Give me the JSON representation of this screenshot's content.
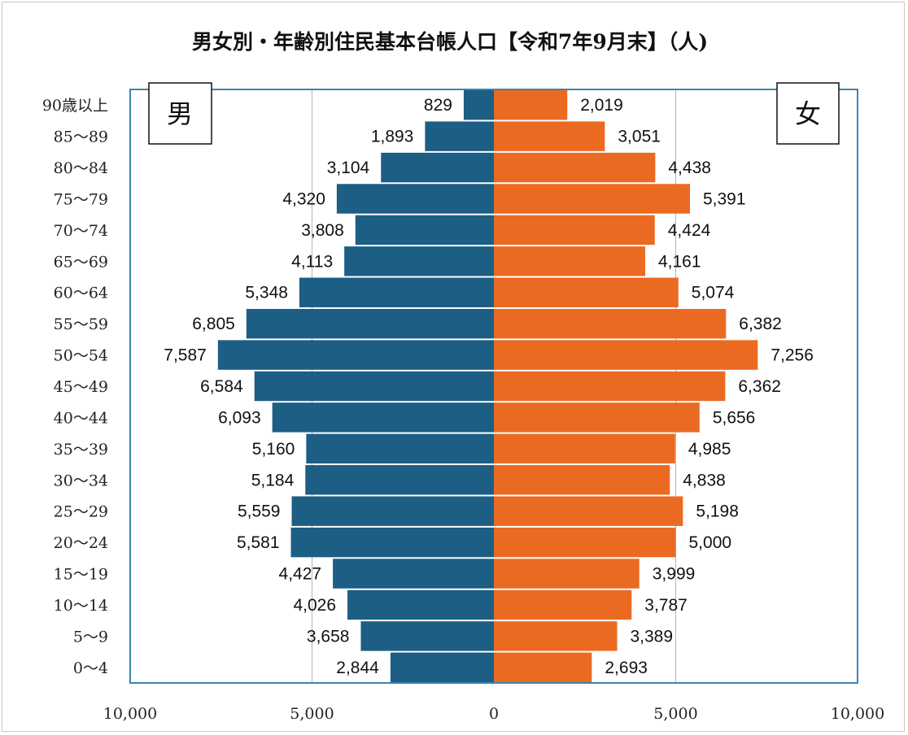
{
  "chart_data": {
    "type": "bar",
    "orientation": "horizontal-pyramid",
    "title": "男女別・年齢別住民基本台帳人口【令和7年9月末】（人)",
    "categories": [
      "90歳以上",
      "85～89",
      "80～84",
      "75～79",
      "70～74",
      "65～69",
      "60～64",
      "55～59",
      "50～54",
      "45～49",
      "40～44",
      "35～39",
      "30～34",
      "25～29",
      "20～24",
      "15～19",
      "10～14",
      "5～9",
      "0～4"
    ],
    "series": [
      {
        "name": "男",
        "color": "#1c5e84",
        "values": [
          829,
          1893,
          3104,
          4320,
          3808,
          4113,
          5348,
          6805,
          7587,
          6584,
          6093,
          5160,
          5184,
          5559,
          5581,
          4427,
          4026,
          3658,
          2844
        ],
        "labels": [
          "829",
          "1,893",
          "3,104",
          "4,320",
          "3,808",
          "4,113",
          "5,348",
          "6,805",
          "7,587",
          "6,584",
          "6,093",
          "5,160",
          "5,184",
          "5,559",
          "5,581",
          "4,427",
          "4,026",
          "3,658",
          "2,844"
        ]
      },
      {
        "name": "女",
        "color": "#ea6a22",
        "values": [
          2019,
          3051,
          4438,
          5391,
          4424,
          4161,
          5074,
          6382,
          7256,
          6362,
          5656,
          4985,
          4838,
          5198,
          5000,
          3999,
          3787,
          3389,
          2693
        ],
        "labels": [
          "2,019",
          "3,051",
          "4,438",
          "5,391",
          "4,424",
          "4,161",
          "5,074",
          "6,382",
          "7,256",
          "6,362",
          "5,656",
          "4,985",
          "4,838",
          "5,198",
          "5,000",
          "3,999",
          "3,787",
          "3,389",
          "2,693"
        ]
      }
    ],
    "xlim": [
      -10000,
      10000
    ],
    "xticks": [
      -10000,
      -5000,
      0,
      5000,
      10000
    ],
    "xtick_labels": [
      "10,000",
      "5,000",
      "0",
      "5,000",
      "10,000"
    ],
    "grid": true,
    "legend": "boxed labels top-left (男) and top-right (女)"
  }
}
